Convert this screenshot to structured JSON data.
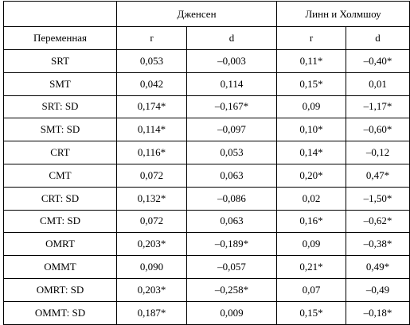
{
  "table": {
    "group_headers": [
      "",
      "Дженсен",
      "Линн и Холмшоу"
    ],
    "column_headers": [
      "Переменная",
      "r",
      "d",
      "r",
      "d"
    ],
    "rows": [
      [
        "SRT",
        "0,053",
        "–0,003",
        "0,11*",
        "–0,40*"
      ],
      [
        "SMT",
        "0,042",
        "0,114",
        "0,15*",
        "0,01"
      ],
      [
        "SRT: SD",
        "0,174*",
        "–0,167*",
        "0,09",
        "–1,17*"
      ],
      [
        "SMT: SD",
        "0,114*",
        "–0,097",
        "0,10*",
        "–0,60*"
      ],
      [
        "CRT",
        "0,116*",
        "0,053",
        "0,14*",
        "–0,12"
      ],
      [
        "CMT",
        "0,072",
        "0,063",
        "0,20*",
        "0,47*"
      ],
      [
        "CRT: SD",
        "0,132*",
        "–0,086",
        "0,02",
        "–1,50*"
      ],
      [
        "CMT: SD",
        "0,072",
        "0,063",
        "0,16*",
        "–0,62*"
      ],
      [
        "OMRT",
        "0,203*",
        "–0,189*",
        "0,09",
        "–0,38*"
      ],
      [
        "OMMT",
        "0,090",
        "–0,057",
        "0,21*",
        "0,49*"
      ],
      [
        "OMRT: SD",
        "0,203*",
        "–0,258*",
        "0,07",
        "–0,49"
      ],
      [
        "OMMT: SD",
        "0,187*",
        "0,009",
        "0,15*",
        "–0,18*"
      ]
    ]
  }
}
